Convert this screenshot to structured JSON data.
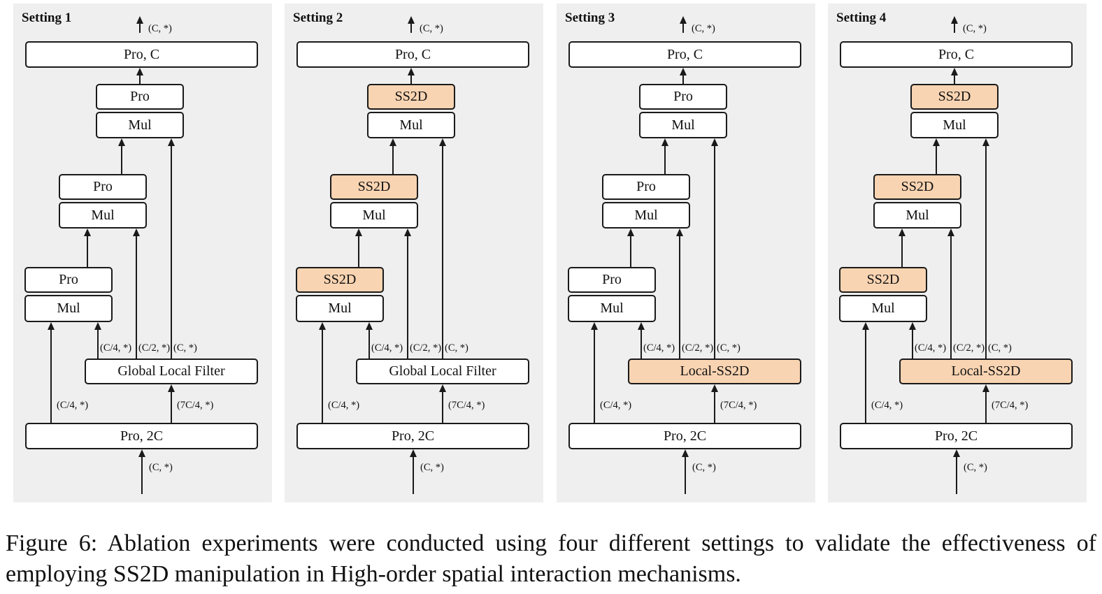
{
  "panels": [
    {
      "title": "Setting 1",
      "top_box": "Pro, C",
      "bottom_box": "Pro, 2C",
      "stage3": {
        "upper": "Pro",
        "lower": "Mul",
        "upper_hl": false
      },
      "stage2": {
        "upper": "Pro",
        "lower": "Mul",
        "upper_hl": false
      },
      "stage1": {
        "upper": "Pro",
        "lower": "Mul",
        "upper_hl": false
      },
      "filter": {
        "label": "Global Local Filter",
        "hl": false
      }
    },
    {
      "title": "Setting 2",
      "top_box": "Pro, C",
      "bottom_box": "Pro, 2C",
      "stage3": {
        "upper": "SS2D",
        "lower": "Mul",
        "upper_hl": true
      },
      "stage2": {
        "upper": "SS2D",
        "lower": "Mul",
        "upper_hl": true
      },
      "stage1": {
        "upper": "SS2D",
        "lower": "Mul",
        "upper_hl": true
      },
      "filter": {
        "label": "Global Local Filter",
        "hl": false
      }
    },
    {
      "title": "Setting 3",
      "top_box": "Pro, C",
      "bottom_box": "Pro, 2C",
      "stage3": {
        "upper": "Pro",
        "lower": "Mul",
        "upper_hl": false
      },
      "stage2": {
        "upper": "Pro",
        "lower": "Mul",
        "upper_hl": false
      },
      "stage1": {
        "upper": "Pro",
        "lower": "Mul",
        "upper_hl": false
      },
      "filter": {
        "label": "Local-SS2D",
        "hl": true
      }
    },
    {
      "title": "Setting 4",
      "top_box": "Pro, C",
      "bottom_box": "Pro, 2C",
      "stage3": {
        "upper": "SS2D",
        "lower": "Mul",
        "upper_hl": true
      },
      "stage2": {
        "upper": "SS2D",
        "lower": "Mul",
        "upper_hl": true
      },
      "stage1": {
        "upper": "SS2D",
        "lower": "Mul",
        "upper_hl": true
      },
      "filter": {
        "label": "Local-SS2D",
        "hl": true
      }
    }
  ],
  "dims": {
    "output": "(C, *)",
    "input": "(C, *)",
    "split_left": "(C/4, *)",
    "split_right": "(7C/4, *)",
    "branch_1": "(C/4, *)",
    "branch_2": "(C/2, *)",
    "branch_3": "(C, *)"
  },
  "colors": {
    "panel_bg": "#efefef",
    "highlight": "#f9d4b2",
    "stroke": "#1a1a1a"
  },
  "caption": "Figure 6: Ablation experiments were conducted using four different settings to validate the effectiveness of employing SS2D manipulation in High-order spatial interaction mechanisms."
}
